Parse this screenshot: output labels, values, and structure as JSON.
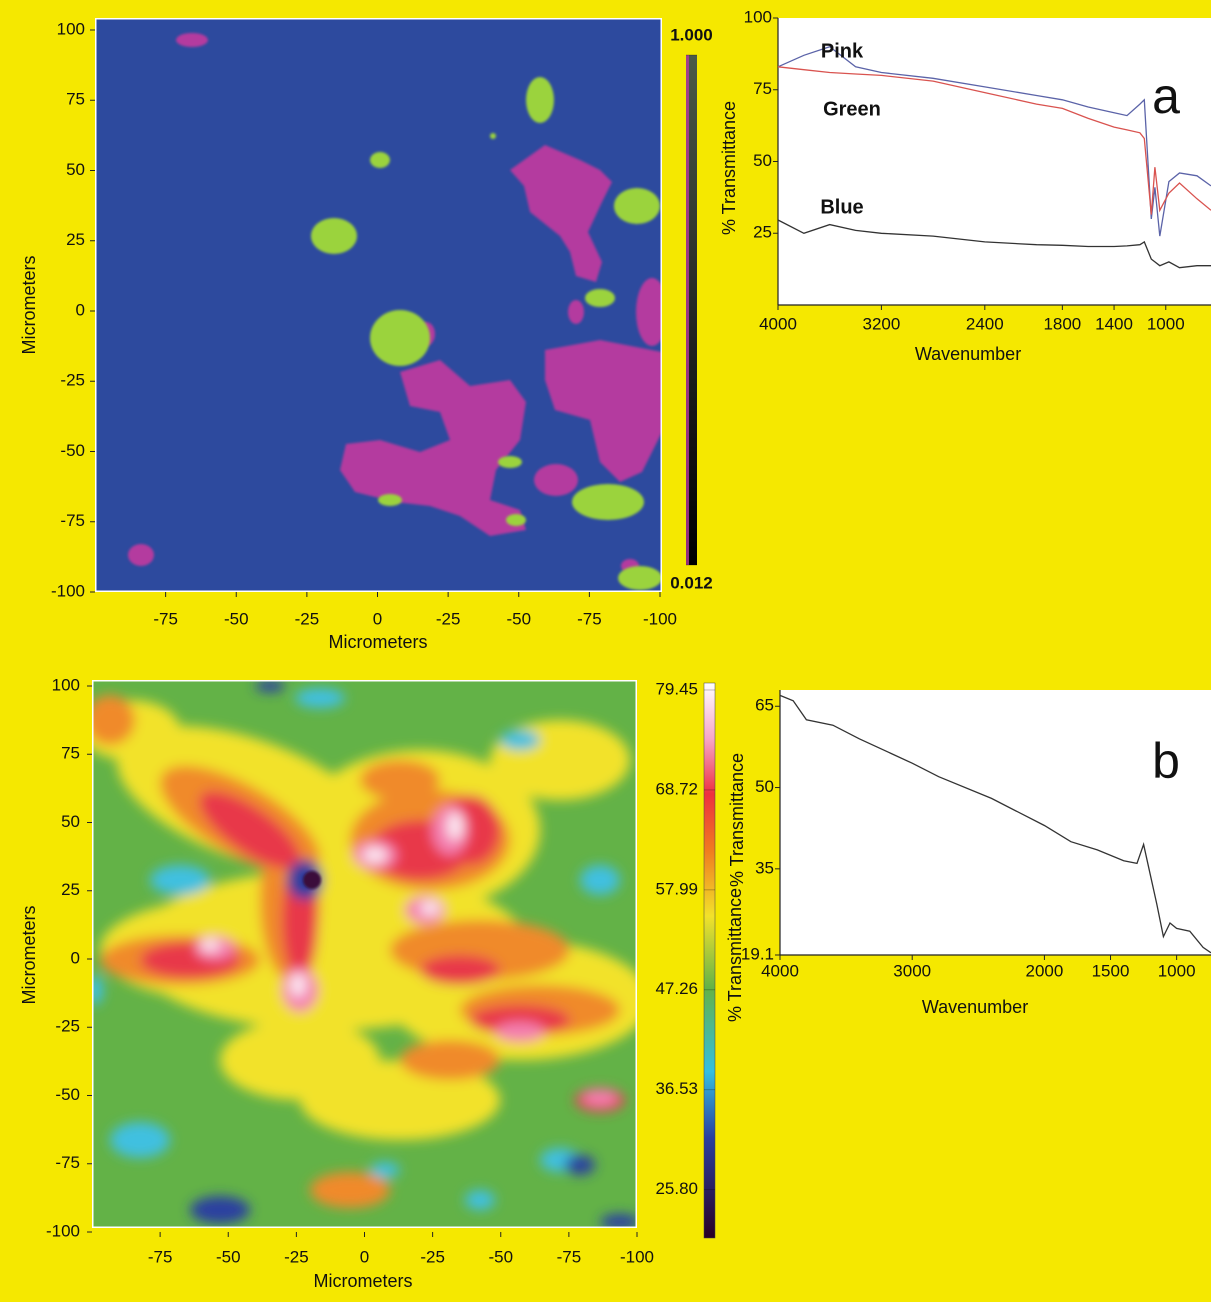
{
  "chart_data": [
    {
      "type": "image",
      "xlabel": "Micrometers",
      "ylabel": "Micrometers",
      "xlim": [
        100,
        -100
      ],
      "xticks": [
        {
          "value": 75,
          "label": "-75"
        },
        {
          "value": 50,
          "label": "-50"
        },
        {
          "value": 25,
          "label": "-25"
        },
        0,
        -25,
        -50,
        -75,
        -100
      ],
      "ylim": [
        -100,
        100
      ],
      "yticks": [
        100,
        75,
        50,
        25,
        0,
        -25,
        -50,
        -75,
        -100
      ],
      "clim": [
        0.012,
        1
      ],
      "colorbar_ticks": [
        {
          "value": 1,
          "label": "1.000"
        },
        {
          "value": 0.012,
          "label": "0.012"
        }
      ],
      "colorbar_tick_color": "#b5399e"
    },
    {
      "type": "line",
      "annotation": "a",
      "xlabel": "Wavenumber",
      "ylabel": "% Transmittance",
      "x": [
        4000,
        3800,
        3600,
        3400,
        3200,
        2800,
        2400,
        2000,
        1800,
        1600,
        1400,
        1300,
        1200,
        1166,
        1112,
        1084,
        1046,
        976,
        894,
        758,
        650
      ],
      "series": [
        {
          "name": "Pink",
          "color": "#5b63a8",
          "label_color": "#b5399e",
          "values": [
            83,
            87,
            90,
            83,
            81,
            79,
            76,
            73,
            71.5,
            69,
            67,
            66,
            70,
            71.5,
            30,
            41,
            24,
            43,
            46,
            45,
            41.5
          ]
        },
        {
          "name": "Green",
          "color": "#d9534f",
          "label_color": "#4caf50",
          "values": [
            83,
            82,
            81,
            80.5,
            80,
            78,
            74,
            70,
            68.5,
            65,
            62,
            61,
            60,
            58,
            31.5,
            48,
            33,
            39,
            42.5,
            37,
            33
          ]
        },
        {
          "name": "Blue",
          "color": "#333333",
          "label_color": "#2f4fa3",
          "values": [
            29.6,
            25,
            28,
            26,
            25,
            24,
            22,
            21,
            20.8,
            20.4,
            20.4,
            20.6,
            21,
            22,
            16,
            15,
            13.7,
            15,
            13,
            13.7,
            13.7
          ]
        }
      ],
      "xlim": [
        4000,
        650
      ],
      "xticks": [
        4000,
        3200,
        2400,
        1800,
        1400,
        1000
      ],
      "ylim": [
        0,
        100
      ],
      "yticks": [
        25,
        50,
        75,
        100
      ]
    },
    {
      "type": "image",
      "xlabel": "Micrometers",
      "ylabel": "Micrometers",
      "xlim": [
        100,
        -100
      ],
      "xticks": [
        {
          "value": 75,
          "label": "-75"
        },
        {
          "value": 50,
          "label": "-50"
        },
        {
          "value": 25,
          "label": "-25"
        },
        0,
        -25,
        -50,
        -75,
        -100
      ],
      "ylim": [
        -100,
        100
      ],
      "yticks": [
        100,
        75,
        50,
        25,
        0,
        -25,
        -50,
        -75,
        -100
      ],
      "clim": [
        20.6,
        80.2
      ],
      "colorbar_ticks": [
        79.45,
        68.72,
        57.99,
        47.26,
        36.53,
        {
          "value": 25.8,
          "label": "25.80"
        }
      ],
      "colorbar_tick_color": "#111111",
      "colorbar_label": "% Transmittance"
    },
    {
      "type": "line",
      "annotation": "b",
      "xlabel": "Wavenumber",
      "ylabel": "% Transmittance",
      "x": [
        4000,
        3900,
        3800,
        3600,
        3400,
        3000,
        2800,
        2400,
        2000,
        1800,
        1600,
        1400,
        1300,
        1250,
        1200,
        1150,
        1100,
        1050,
        1000,
        900,
        800,
        740
      ],
      "values": [
        67,
        66,
        62.5,
        61.5,
        59,
        54.5,
        52,
        48,
        43,
        40,
        38.5,
        36.5,
        36,
        39.5,
        34,
        28.5,
        22.5,
        25,
        24,
        23.5,
        20.5,
        19.5
      ],
      "color": "#333333",
      "xlim": [
        4000,
        740
      ],
      "xticks": [
        4000,
        3000,
        2000,
        1500,
        1000
      ],
      "ylim": [
        19.1,
        68
      ],
      "yticks": [
        19.1,
        35,
        50,
        65
      ]
    }
  ]
}
